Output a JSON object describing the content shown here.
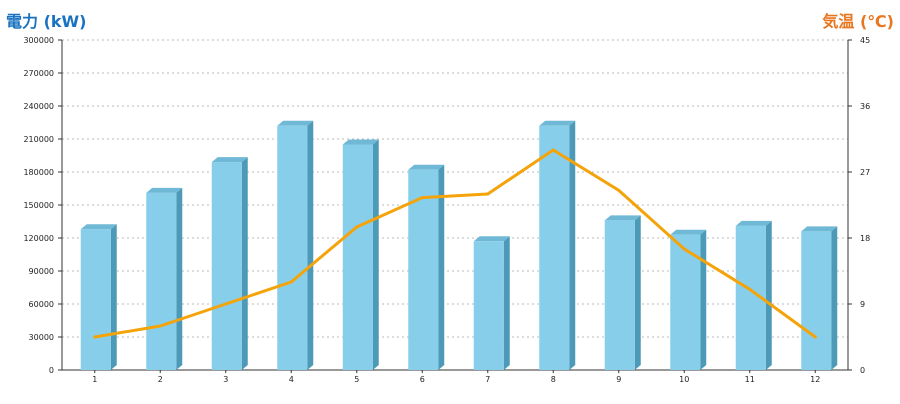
{
  "colors": {
    "left_axis_title": "#1a73c0",
    "right_axis_title": "#e87722",
    "bar_front": "#87ceeb",
    "bar_top": "#6fb8d6",
    "bar_side": "#4c9ab8",
    "line": "#f5a30a",
    "grid": "#bbbbbb",
    "axis": "#333333"
  },
  "chart_data": {
    "type": "bar",
    "categories": [
      "1",
      "2",
      "3",
      "4",
      "5",
      "6",
      "7",
      "8",
      "9",
      "10",
      "11",
      "12"
    ],
    "series": [
      {
        "axis": "left",
        "kind": "bar",
        "values": [
          128000,
          161000,
          189000,
          222000,
          205000,
          182000,
          117000,
          222000,
          136000,
          123000,
          131000,
          126000
        ]
      },
      {
        "axis": "right",
        "kind": "line",
        "values": [
          4.5,
          6,
          9,
          12,
          19.5,
          23.5,
          24,
          30,
          24.5,
          16.5,
          11,
          4.5
        ]
      }
    ],
    "ylabel": "電力 (kW)",
    "y2label": "気温 (℃)",
    "ylim": [
      0,
      300000
    ],
    "y2lim": [
      0,
      45
    ],
    "yticks": [
      "0",
      "30000",
      "60000",
      "90000",
      "120000",
      "150000",
      "180000",
      "210000",
      "240000",
      "270000",
      "300000"
    ],
    "y2ticks": [
      "0",
      "9",
      "18",
      "27",
      "36",
      "45"
    ],
    "grid": true
  }
}
